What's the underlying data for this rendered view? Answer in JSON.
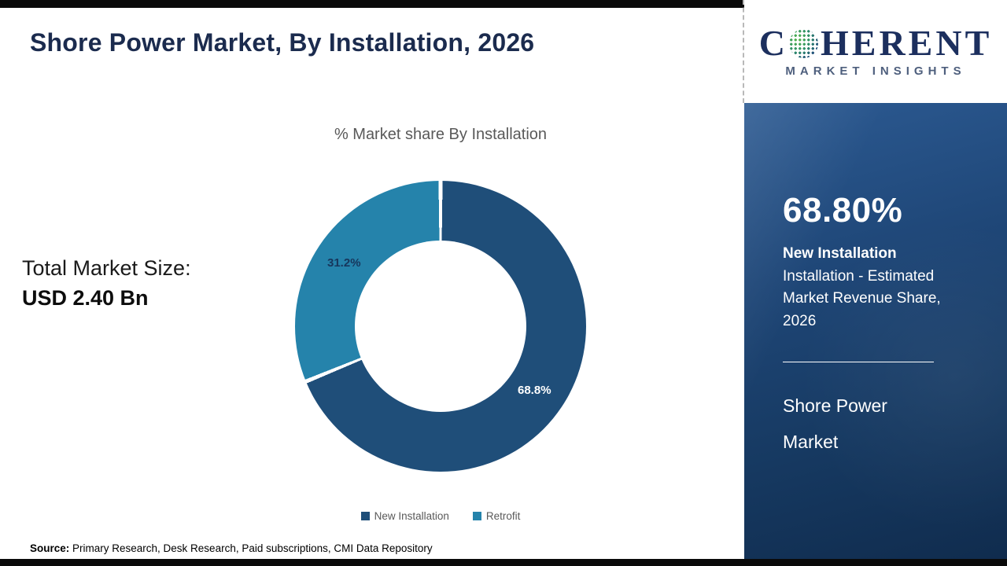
{
  "page": {
    "title": "Shore Power Market, By Installation, 2026"
  },
  "logo": {
    "brand_first": "C",
    "brand_rest": "HERENT",
    "tagline": "MARKET INSIGHTS",
    "globe_icon": "dotted-globe-icon"
  },
  "chart_data": {
    "type": "pie",
    "donut": true,
    "title": "% Market share By Installation",
    "categories": [
      "New Installation",
      "Retrofit"
    ],
    "values": [
      68.8,
      31.2
    ],
    "labels": [
      "68.8%",
      "31.2%"
    ],
    "colors": [
      "#1f4e79",
      "#2583ab"
    ],
    "legend_position": "bottom",
    "start_angle_deg": 0,
    "direction": "clockwise"
  },
  "left_stat": {
    "label": "Total Market Size:",
    "value": "USD 2.40 Bn"
  },
  "sidebar": {
    "highlight_value": "68.80%",
    "highlight_segment": "New Installation",
    "highlight_description": "Installation - Estimated Market Revenue Share, 2026",
    "market_name_line1": "Shore Power",
    "market_name_line2": "Market"
  },
  "footer": {
    "source_label": "Source:",
    "source_text": " Primary Research, Desk Research, Paid subscriptions, CMI Data Repository"
  }
}
